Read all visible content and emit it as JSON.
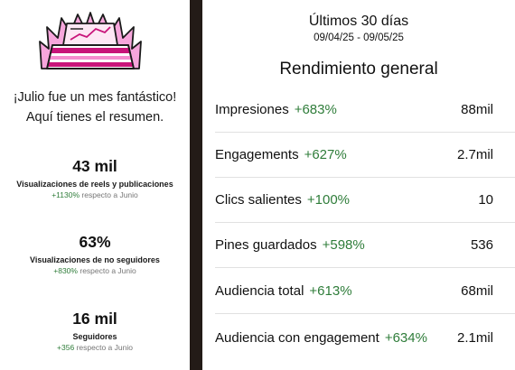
{
  "summary": {
    "intro_line1": "¡Julio fue un mes fantástico!",
    "intro_line2": "Aquí tienes el resumen.",
    "stats": [
      {
        "value": "43 mil",
        "label": "Visualizaciones de reels y publicaciones",
        "delta": "+1130%",
        "suffix": "respecto a Junio"
      },
      {
        "value": "63%",
        "label": "Visualizaciones de no seguidores",
        "delta": "+830%",
        "suffix": "respecto a Junio"
      },
      {
        "value": "16 mil",
        "label": "Seguidores",
        "delta": "+356",
        "suffix": "respecto a Junio"
      }
    ]
  },
  "performance": {
    "range_title": "Últimos 30 días",
    "range_dates": "09/04/25 - 09/05/25",
    "section_title": "Rendimiento general",
    "metrics": [
      {
        "label": "Impresiones",
        "delta": "+683%",
        "value": "88mil"
      },
      {
        "label": "Engagements",
        "delta": "+627%",
        "value": "2.7mil"
      },
      {
        "label": "Clics salientes",
        "delta": "+100%",
        "value": "10"
      },
      {
        "label": "Pines guardados",
        "delta": "+598%",
        "value": "536"
      },
      {
        "label": "Audiencia total",
        "delta": "+613%",
        "value": "68mil"
      },
      {
        "label": "Audiencia con engagement",
        "delta": "+634%",
        "value": "2.1mil"
      }
    ]
  },
  "colors": {
    "positive_delta": "#2f7d3a",
    "divider": "#231b17",
    "hero_pink": "#f58ccf",
    "hero_magenta": "#c8147a"
  },
  "icons": {
    "hero": "trophy-chart-illustration"
  }
}
